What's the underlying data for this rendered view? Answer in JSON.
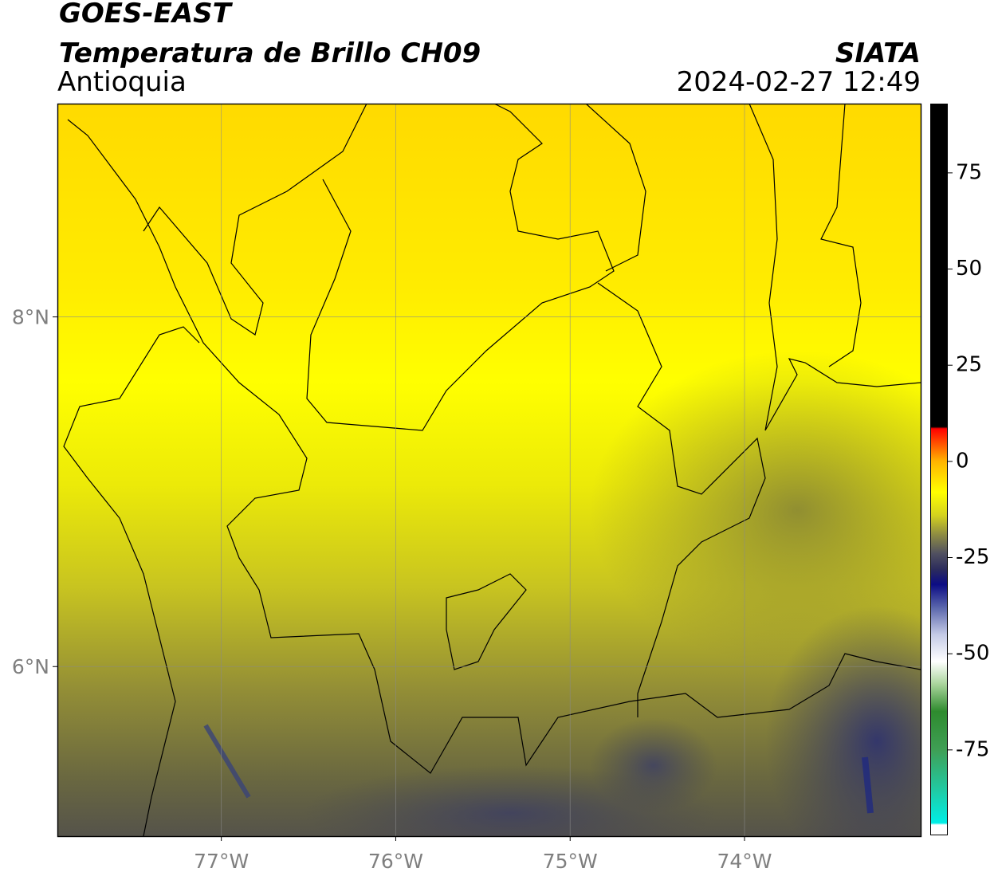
{
  "header": {
    "title": "GOES-EAST",
    "subtitle": "Temperatura de Brillo CH09",
    "region": "Antioquia",
    "source": "SIATA",
    "timestamp": "2024-02-27 12:49"
  },
  "map": {
    "lonlim": [
      -77.94,
      -72.99
    ],
    "latlim": [
      5.03,
      9.22
    ],
    "lonticks": [
      {
        "value": -77,
        "label": "77°W"
      },
      {
        "value": -76,
        "label": "76°W"
      },
      {
        "value": -75,
        "label": "75°W"
      },
      {
        "value": -74,
        "label": "74°W"
      }
    ],
    "latticks": [
      {
        "value": 8,
        "label": "8°N"
      },
      {
        "value": 6,
        "label": "6°N"
      }
    ],
    "grid": true
  },
  "colorbar": {
    "lim": [
      -97,
      93
    ],
    "ticks": [
      75,
      50,
      25,
      0,
      -25,
      -50,
      -75
    ],
    "colormap": [
      {
        "value": -97,
        "color": "#ffffff"
      },
      {
        "value": -94.5,
        "color": "#ffffff"
      },
      {
        "value": -94,
        "color": "#00eee6"
      },
      {
        "value": -85,
        "color": "#22c8a0"
      },
      {
        "value": -75,
        "color": "#3f9f55"
      },
      {
        "value": -65,
        "color": "#2e8b2e"
      },
      {
        "value": -58,
        "color": "#a8d49a"
      },
      {
        "value": -52,
        "color": "#ffffff"
      },
      {
        "value": -45,
        "color": "#c4cae6"
      },
      {
        "value": -38,
        "color": "#5a66ac"
      },
      {
        "value": -32,
        "color": "#0c0c84"
      },
      {
        "value": -28,
        "color": "#2c2c5c"
      },
      {
        "value": -24,
        "color": "#505060"
      },
      {
        "value": -19,
        "color": "#8e8c42"
      },
      {
        "value": -14,
        "color": "#d4d21e"
      },
      {
        "value": -8,
        "color": "#ffff00"
      },
      {
        "value": 0,
        "color": "#ffb400"
      },
      {
        "value": 5,
        "color": "#ff4a00"
      },
      {
        "value": 8.5,
        "color": "#ff0000"
      },
      {
        "value": 9,
        "color": "#000000"
      },
      {
        "value": 93,
        "color": "#000000"
      }
    ]
  }
}
